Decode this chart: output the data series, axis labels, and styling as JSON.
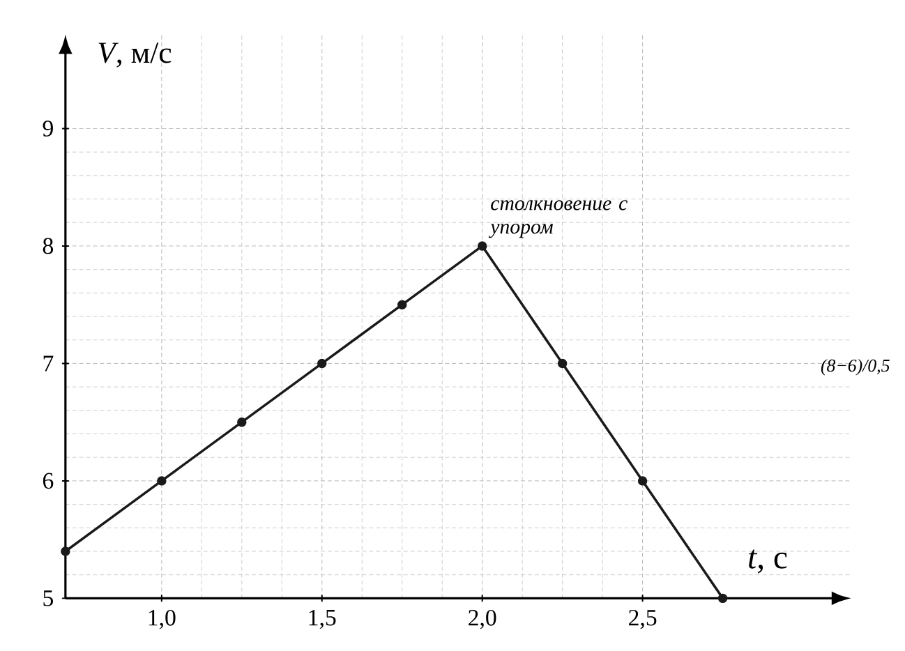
{
  "chart_data": {
    "type": "line",
    "xlabel": "*t*, с",
    "ylabel": "*V*, м/с",
    "x": [
      0.7,
      1.0,
      1.25,
      1.5,
      1.75,
      2.0,
      2.25,
      2.5,
      2.75
    ],
    "values": [
      5.4,
      6.0,
      6.5,
      7.0,
      7.5,
      8.0,
      7.0,
      6.0,
      5.0
    ],
    "color": "#1a1a1a",
    "marker": "circle",
    "line_style": "solid",
    "grid": true,
    "xlim": [
      0.7,
      3.15
    ],
    "ylim": [
      5,
      9.8
    ],
    "xticks": [
      {
        "value": 1.0,
        "label": "1,0"
      },
      {
        "value": 1.5,
        "label": "1,5"
      },
      {
        "value": 2.0,
        "label": "2,0"
      },
      {
        "value": 2.5,
        "label": "2,5"
      }
    ],
    "yticks": [
      5,
      6,
      7,
      8,
      9
    ],
    "annotations": [
      {
        "text": "столкновение с упором",
        "x": 2.0,
        "y": 8.0
      },
      "(8−6)/0,5"
    ]
  }
}
